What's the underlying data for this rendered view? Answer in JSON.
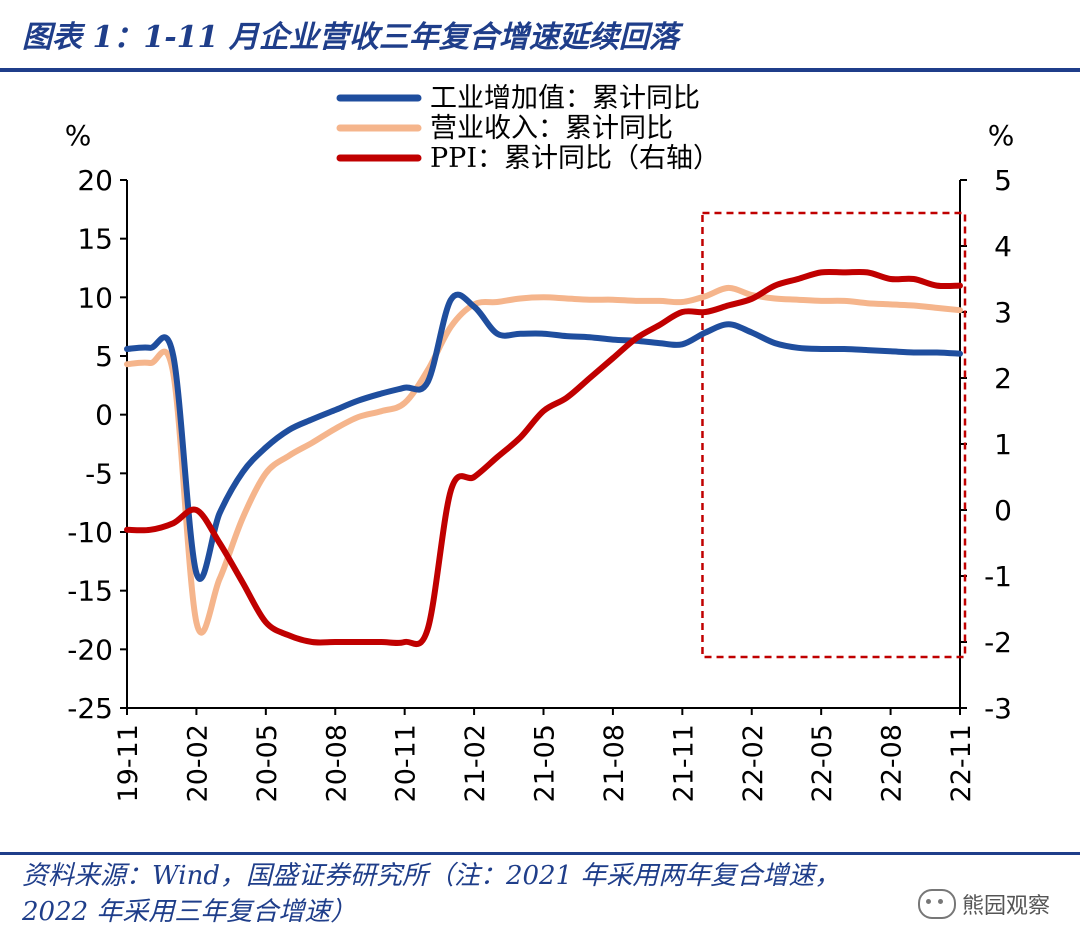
{
  "header": {
    "title": "图表 1：1-11 月企业营收三年复合增速延续回落"
  },
  "footer": {
    "source_line1": "资料来源：Wind，国盛证券研究所（注：2021 年采用两年复合增速，",
    "source_line2": "2022 年采用三年复合增速）"
  },
  "watermark": {
    "text": "熊园观察",
    "icon": "wechat-icon"
  },
  "chart_data": {
    "type": "line",
    "x": [
      "19-11",
      "19-12",
      "20-01",
      "20-02",
      "20-03",
      "20-04",
      "20-05",
      "20-06",
      "20-07",
      "20-08",
      "20-09",
      "20-10",
      "20-11",
      "20-12",
      "21-01",
      "21-02",
      "21-03",
      "21-04",
      "21-05",
      "21-06",
      "21-07",
      "21-08",
      "21-09",
      "21-10",
      "21-11",
      "21-12",
      "22-01",
      "22-02",
      "22-03",
      "22-04",
      "22-05",
      "22-06",
      "22-07",
      "22-08",
      "22-09",
      "22-10",
      "22-11"
    ],
    "x_tick_labels": [
      "19-11",
      "20-02",
      "20-05",
      "20-08",
      "20-11",
      "21-02",
      "21-05",
      "21-08",
      "21-11",
      "22-02",
      "22-05",
      "22-08",
      "22-11"
    ],
    "left_axis": {
      "unit": "%",
      "ylim": [
        -25,
        20
      ],
      "ticks": [
        "20",
        "15",
        "10",
        "5",
        "0",
        "-5",
        "-10",
        "-15",
        "-20",
        "-25"
      ]
    },
    "right_axis": {
      "unit": "%",
      "ylim": [
        -3,
        5
      ],
      "ticks": [
        "5",
        "4",
        "3",
        "2",
        "1",
        "0",
        "-1",
        "-2",
        "-3"
      ]
    },
    "legend": {
      "placement": "top"
    },
    "series": [
      {
        "name": "工业增加值：累计同比",
        "color": "#1f4e9e",
        "axis": "left",
        "values": [
          5.6,
          5.7,
          5.0,
          -13.5,
          -8.4,
          -4.9,
          -2.8,
          -1.3,
          -0.4,
          0.4,
          1.2,
          1.8,
          2.3,
          2.8,
          9.8,
          9.2,
          6.9,
          6.9,
          6.9,
          6.7,
          6.6,
          6.4,
          6.3,
          6.1,
          6.0,
          7.0,
          7.7,
          7.0,
          6.1,
          5.7,
          5.6,
          5.6,
          5.5,
          5.4,
          5.3,
          5.3,
          5.2
        ]
      },
      {
        "name": "营业收入：累计同比",
        "color": "#f5b58c",
        "axis": "left",
        "values": [
          4.3,
          4.4,
          3.5,
          -17.7,
          -14.0,
          -8.8,
          -5.0,
          -3.5,
          -2.4,
          -1.2,
          -0.2,
          0.3,
          1.0,
          3.8,
          7.5,
          9.4,
          9.6,
          9.9,
          10.0,
          9.9,
          9.8,
          9.8,
          9.7,
          9.7,
          9.6,
          10.1,
          10.8,
          10.2,
          9.9,
          9.8,
          9.7,
          9.7,
          9.5,
          9.4,
          9.3,
          9.1,
          8.9
        ]
      },
      {
        "name": "PPI：累计同比（右轴）",
        "color": "#c00000",
        "axis": "right",
        "values": [
          -0.3,
          -0.3,
          -0.2,
          0.0,
          -0.5,
          -1.1,
          -1.7,
          -1.9,
          -2.0,
          -2.0,
          -2.0,
          -2.0,
          -2.0,
          -1.8,
          0.3,
          0.5,
          0.8,
          1.1,
          1.5,
          1.7,
          2.0,
          2.3,
          2.6,
          2.8,
          3.0,
          3.0,
          3.1,
          3.2,
          3.4,
          3.5,
          3.6,
          3.6,
          3.6,
          3.5,
          3.5,
          3.4,
          3.4
        ]
      }
    ],
    "highlight_box": {
      "from": "21-12",
      "to": "22-11",
      "style": "dashed",
      "color": "#c00000"
    }
  }
}
